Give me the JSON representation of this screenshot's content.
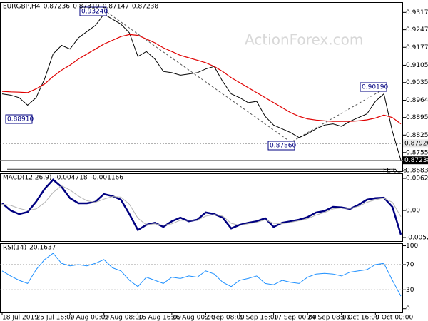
{
  "chart_data": [
    {
      "type": "line",
      "title": "EURGBP,H4",
      "ohlc": [
        0.87236,
        0.87319,
        0.87147,
        0.87238
      ],
      "watermark": "ActionForex.com",
      "ylim": [
        0.868,
        0.9358
      ],
      "yticks": [
        {
          "value": 0.9317,
          "label": "0.93170"
        },
        {
          "value": 0.92475,
          "label": "0.92475"
        },
        {
          "value": 0.9177,
          "label": "0.91770"
        },
        {
          "value": 0.9105,
          "label": "0.91050"
        },
        {
          "value": 0.90355,
          "label": "0.90355"
        },
        {
          "value": 0.89645,
          "label": "0.89645"
        },
        {
          "value": 0.88955,
          "label": "0.88955"
        },
        {
          "value": 0.8825,
          "label": "0.88250"
        },
        {
          "value": 0.8755,
          "label": "0.87550"
        },
        {
          "value": 0.86835,
          "label": "0.86835"
        }
      ],
      "series": [
        {
          "name": "Close",
          "color": "#000000",
          "values": [
            0.899,
            0.8985,
            0.8975,
            0.8945,
            0.8975,
            0.905,
            0.915,
            0.9185,
            0.917,
            0.9215,
            0.924,
            0.9265,
            0.931,
            0.929,
            0.927,
            0.9235,
            0.914,
            0.916,
            0.913,
            0.908,
            0.9075,
            0.9065,
            0.907,
            0.9075,
            0.909,
            0.91,
            0.904,
            0.899,
            0.8975,
            0.8955,
            0.896,
            0.89,
            0.8865,
            0.885,
            0.8835,
            0.8815,
            0.883,
            0.885,
            0.8865,
            0.887,
            0.886,
            0.888,
            0.8895,
            0.891,
            0.896,
            0.899,
            0.884,
            0.8724
          ]
        },
        {
          "name": "MA",
          "color": "#e00000",
          "values": [
            0.9,
            0.8998,
            0.8997,
            0.8995,
            0.901,
            0.903,
            0.906,
            0.9085,
            0.9105,
            0.913,
            0.915,
            0.917,
            0.919,
            0.9205,
            0.922,
            0.9228,
            0.9225,
            0.921,
            0.9195,
            0.9175,
            0.916,
            0.9145,
            0.9135,
            0.9125,
            0.9115,
            0.91,
            0.908,
            0.9055,
            0.9035,
            0.9015,
            0.8995,
            0.8975,
            0.8955,
            0.8935,
            0.8915,
            0.89,
            0.889,
            0.8885,
            0.8882,
            0.888,
            0.888,
            0.888,
            0.8882,
            0.8886,
            0.8893,
            0.8905,
            0.8895,
            0.887
          ]
        }
      ],
      "price_labels": [
        {
          "value": 0.9324,
          "label": "0.93240"
        },
        {
          "value": 0.8891,
          "label": "0.88910"
        },
        {
          "value": 0.8786,
          "label": "0.87860"
        },
        {
          "value": 0.9019,
          "label": "0.90190"
        }
      ],
      "axis_markers": [
        {
          "value": 0.8792,
          "label": "0.87920"
        },
        {
          "value": 0.87238,
          "label": "0.87238"
        }
      ],
      "fe": {
        "value": 0.8688,
        "label": "FE 61.8"
      }
    },
    {
      "type": "line",
      "title": "MACD(12,26,9)",
      "readings": [
        -0.004718,
        -0.001166
      ],
      "ylim": [
        -0.00597,
        0.00724
      ],
      "yticks": [
        0.006263,
        {
          "value": 0,
          "label": "0.00"
        },
        -0.005273
      ],
      "series": [
        {
          "name": "MACD",
          "color": "#000080",
          "values": [
            0.0014,
            0.0,
            -0.0007,
            -0.0003,
            0.0017,
            0.0042,
            0.006,
            0.0046,
            0.0024,
            0.0014,
            0.0014,
            0.0017,
            0.0032,
            0.0028,
            0.0021,
            -0.0007,
            -0.0038,
            -0.0028,
            -0.0024,
            -0.0032,
            -0.0021,
            -0.0014,
            -0.0021,
            -0.0018,
            -0.0004,
            -0.0007,
            -0.0014,
            -0.0035,
            -0.0028,
            -0.0024,
            -0.0021,
            -0.0015,
            -0.0032,
            -0.0024,
            -0.0021,
            -0.0018,
            -0.0013,
            -0.0004,
            -0.0001,
            0.0007,
            0.0006,
            0.0003,
            0.0011,
            0.0021,
            0.0024,
            0.0025,
            0.0007,
            -0.0047
          ]
        },
        {
          "name": "Signal",
          "color": "#b4b4b4",
          "values": [
            0.0012,
            0.001,
            0.0004,
            0.0,
            0.0003,
            0.0015,
            0.0035,
            0.0048,
            0.004,
            0.0028,
            0.0019,
            0.0016,
            0.0022,
            0.0027,
            0.0026,
            0.0012,
            -0.0015,
            -0.0028,
            -0.0026,
            -0.0029,
            -0.0026,
            -0.0019,
            -0.0019,
            -0.0019,
            -0.0011,
            -0.0008,
            -0.0011,
            -0.0025,
            -0.0029,
            -0.0026,
            -0.0023,
            -0.0018,
            -0.0025,
            -0.0026,
            -0.0023,
            -0.002,
            -0.0016,
            -0.0009,
            -0.0004,
            0.0003,
            0.0005,
            0.0004,
            0.0008,
            0.0016,
            0.0021,
            0.0024,
            0.0016,
            -0.0012
          ]
        }
      ]
    },
    {
      "type": "line",
      "title": "RSI(14)",
      "readings": [
        20.1637
      ],
      "ylim": [
        -6,
        104
      ],
      "yticks": [
        100,
        70,
        30,
        0
      ],
      "levels": [
        70,
        30
      ],
      "categories": [
        "18 Jul 2019",
        null,
        null,
        null,
        "25 Jul 16:00",
        null,
        null,
        null,
        "2 Aug 00:00",
        null,
        null,
        null,
        "9 Aug 08:00",
        null,
        null,
        null,
        "16 Aug 16:00",
        null,
        null,
        null,
        "26 Aug 00:00",
        null,
        null,
        null,
        "2 Sep 08:00",
        null,
        null,
        null,
        "9 Sep 16:00",
        null,
        null,
        null,
        "17 Sep 00:00",
        null,
        null,
        null,
        "24 Sep 08:00",
        null,
        null,
        null,
        "1 Oct 16:00",
        null,
        null,
        null,
        "9 Oct 00:00",
        null,
        null,
        null
      ],
      "series": [
        {
          "name": "RSI",
          "color": "#1e90ff",
          "values": [
            60,
            52,
            45,
            40,
            62,
            78,
            88,
            72,
            68,
            70,
            68,
            72,
            78,
            65,
            60,
            45,
            35,
            50,
            45,
            40,
            50,
            48,
            52,
            50,
            60,
            55,
            42,
            35,
            45,
            48,
            52,
            40,
            38,
            45,
            42,
            40,
            50,
            55,
            56,
            55,
            52,
            58,
            60,
            62,
            70,
            72,
            45,
            20
          ]
        }
      ]
    }
  ]
}
